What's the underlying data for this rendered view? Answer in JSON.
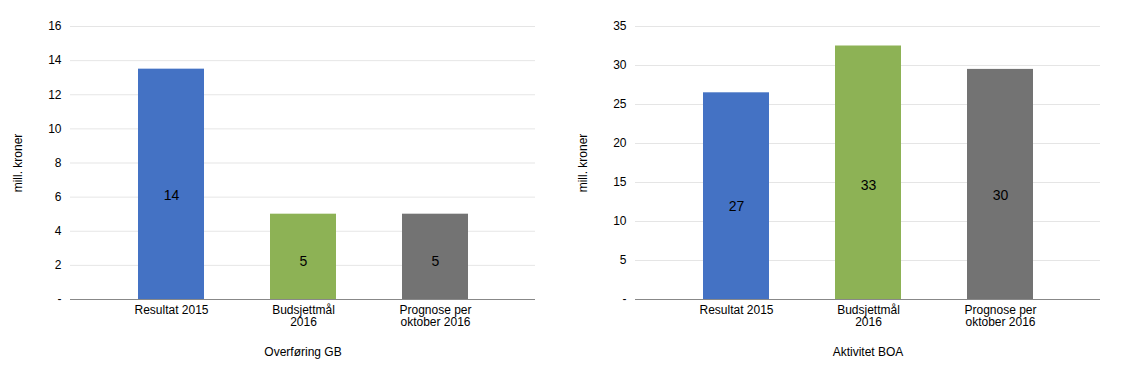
{
  "chart_data": [
    {
      "type": "bar",
      "categories": [
        "Resultat 2015",
        "Budsjettmål\n2016",
        "Prognose per\noktober 2016"
      ],
      "values": [
        13.5,
        5.0,
        5.0
      ],
      "value_labels": [
        "14",
        "5",
        "5"
      ],
      "data_labels": true,
      "colors": [
        "#4472C4",
        "#8DB255",
        "#737373"
      ],
      "ylabel": "mill. kroner",
      "xlabel": "Overføring GB",
      "ylim": [
        0,
        16
      ],
      "yticks": [
        {
          "value": 0,
          "label": "-"
        },
        2,
        4,
        6,
        8,
        10,
        12,
        14,
        16
      ],
      "grid": true
    },
    {
      "type": "bar",
      "categories": [
        "Resultat 2015",
        "Budsjettmål\n2016",
        "Prognose per\noktober 2016"
      ],
      "values": [
        26.5,
        32.5,
        29.5
      ],
      "value_labels": [
        "27",
        "33",
        "30"
      ],
      "data_labels": true,
      "colors": [
        "#4472C4",
        "#8DB255",
        "#737373"
      ],
      "ylabel": "mill. kroner",
      "xlabel": "Aktivitet BOA",
      "ylim": [
        0,
        35
      ],
      "yticks": [
        {
          "value": 0,
          "label": "-"
        },
        5,
        10,
        15,
        20,
        25,
        30,
        35
      ],
      "grid": true
    }
  ]
}
